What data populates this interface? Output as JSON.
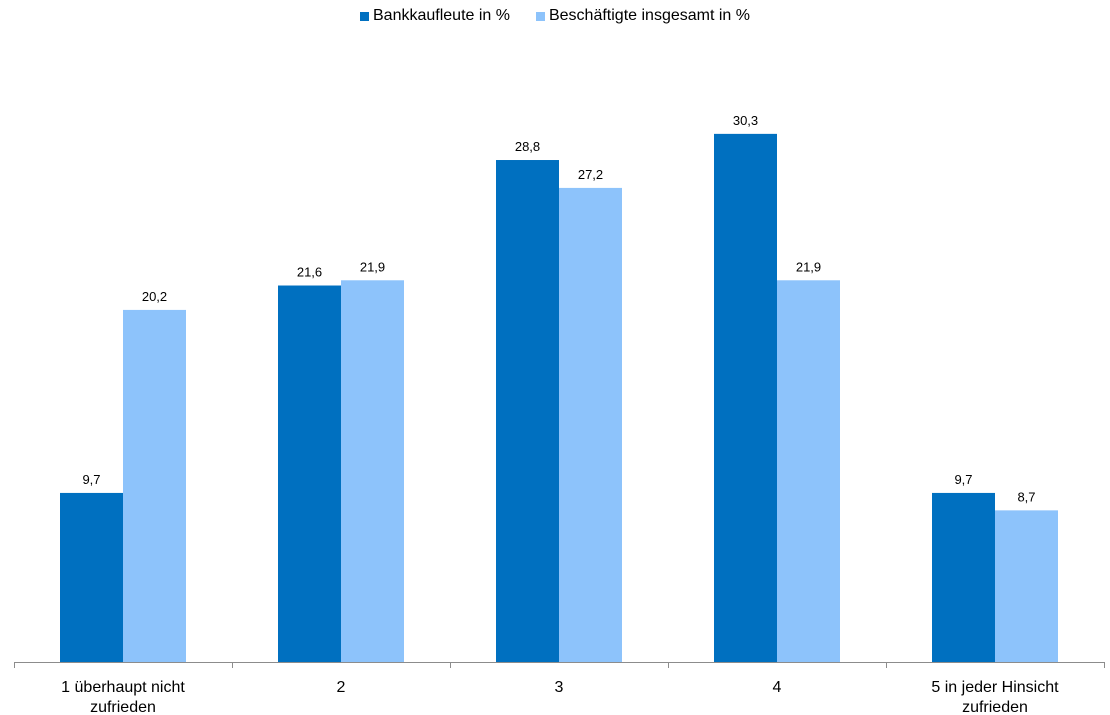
{
  "colors": {
    "series_1": "#0070c0",
    "series_2": "#8dc3fb",
    "axis": "#8c8c8c"
  },
  "legend": {
    "position": "top-center",
    "items": [
      {
        "label": "Bankkaufleute in %"
      },
      {
        "label": "Beschäftigte insgesamt in %"
      }
    ]
  },
  "chart_data": {
    "type": "bar",
    "title": "",
    "xlabel": "",
    "ylabel": "",
    "ylim": [
      0,
      32
    ],
    "grid": false,
    "categories": [
      [
        "1 überhaupt nicht",
        "zufrieden"
      ],
      [
        "2"
      ],
      [
        "3"
      ],
      [
        "4"
      ],
      [
        "5 in jeder Hinsicht",
        "zufrieden"
      ]
    ],
    "series": [
      {
        "name": "Bankkaufleute in %",
        "values": [
          9.7,
          21.6,
          28.8,
          30.3,
          9.7
        ],
        "labels": [
          "9,7",
          "21,6",
          "28,8",
          "30,3",
          "9,7"
        ]
      },
      {
        "name": "Beschäftigte insgesamt in %",
        "values": [
          20.2,
          21.9,
          27.2,
          21.9,
          8.7
        ],
        "labels": [
          "20,2",
          "21,9",
          "27,2",
          "21,9",
          "8,7"
        ]
      }
    ]
  }
}
